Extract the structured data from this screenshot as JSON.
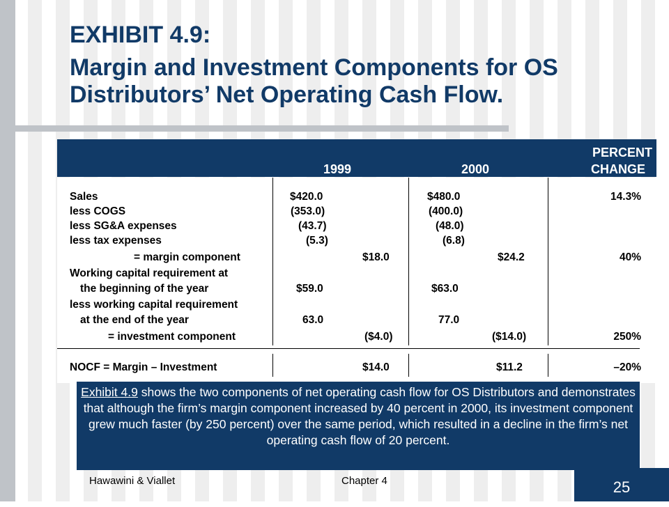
{
  "title": {
    "line1": "EXHIBIT 4.9:",
    "line2": "Margin and Investment Components for OS Distributors’ Net Operating Cash Flow."
  },
  "table": {
    "headers": {
      "col1999": "1999",
      "col2000": "2000",
      "pct_line1": "PERCENT",
      "pct_line2": "CHANGE"
    },
    "rows": [
      {
        "label": "Sales",
        "a": "$420.0",
        "b": "",
        "c": "$480.0",
        "d": "",
        "e": "14.3%"
      },
      {
        "label": "less COGS",
        "a": "(353.0)",
        "b": "",
        "c": "(400.0)",
        "d": "",
        "e": ""
      },
      {
        "label": "less SG&A expenses",
        "a": "(43.7)",
        "b": "",
        "c": "(48.0)",
        "d": "",
        "e": ""
      },
      {
        "label": "less tax expenses",
        "a": "(5.3)",
        "b": "",
        "c": "(6.8)",
        "d": "",
        "e": ""
      },
      {
        "label": "= margin component",
        "a": "",
        "b": "$18.0",
        "c": "",
        "d": "$24.2",
        "e": "40%"
      },
      {
        "label": "Working capital requirement at",
        "a": "",
        "b": "",
        "c": "",
        "d": "",
        "e": ""
      },
      {
        "label": "the beginning of the year",
        "a": "$59.0",
        "b": "",
        "c": "$63.0",
        "d": "",
        "e": ""
      },
      {
        "label": "less working capital requirement",
        "a": "",
        "b": "",
        "c": "",
        "d": "",
        "e": ""
      },
      {
        "label": "at the end of the year",
        "a": "63.0",
        "b": "",
        "c": "77.0",
        "d": "",
        "e": ""
      },
      {
        "label": "= investment component",
        "a": "",
        "b": "($4.0)",
        "c": "",
        "d": "($14.0)",
        "e": "250%"
      },
      {
        "label": "NOCF = Margin – Investment",
        "a": "",
        "b": "$14.0",
        "c": "",
        "d": "$11.2",
        "e": "–20%"
      }
    ]
  },
  "caption": {
    "link": "Exhibit 4.9",
    "text": " shows the two components of net operating cash flow for OS Distributors and demonstrates that although the firm’s margin component increased by 40 percent in 2000, its investment component grew much faster (by 250 percent) over the same period, which resulted in a decline in the firm’s net operating cash flow of 20 percent."
  },
  "footer": {
    "author": "Hawawini & Viallet",
    "chapter": "Chapter 4",
    "page": "25"
  },
  "colors": {
    "navy": "#113a67",
    "grey_bar": "#bfc3c8"
  }
}
